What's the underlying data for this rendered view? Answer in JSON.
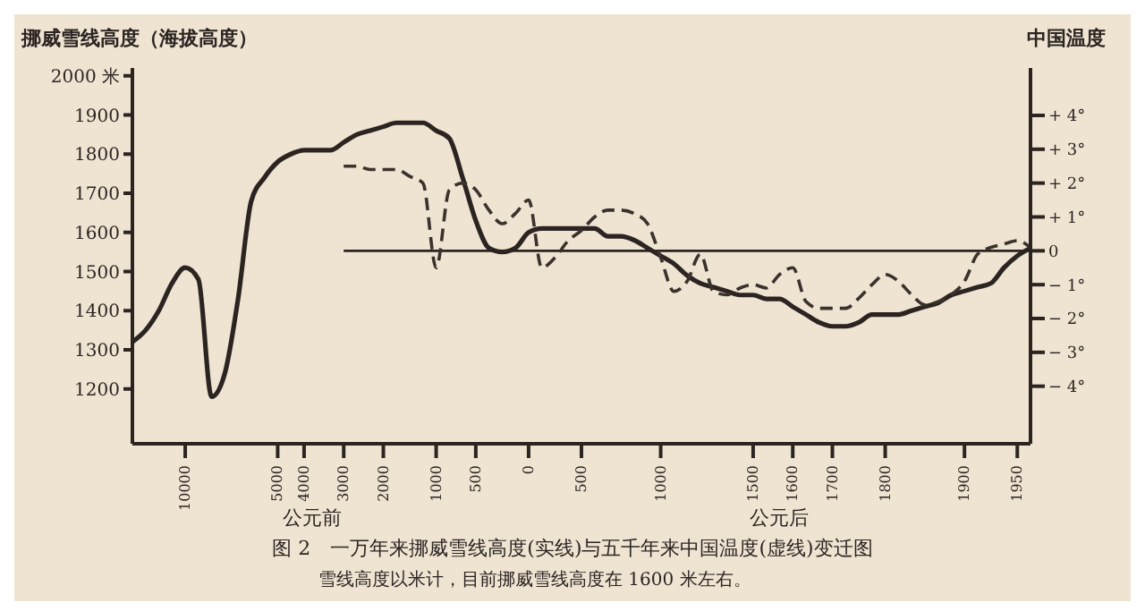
{
  "chart_data": {
    "type": "line",
    "title": "图 2　一万年来挪威雪线高度(实线)与五千年来中国温度(虚线)变迁图",
    "subtitle": "雪线高度以米计，目前挪威雪线高度在 1600 米左右。",
    "ylabel": "挪威雪线高度（海拔高度）",
    "y2label": "中国温度",
    "xlabel": "公元前",
    "annotations": [
      "公元后"
    ],
    "categories": [
      null,
      null,
      null,
      null,
      "10000",
      null,
      null,
      null,
      null,
      null,
      null,
      "5000",
      null,
      "4000",
      null,
      null,
      "3000",
      null,
      null,
      "2000",
      null,
      null,
      null,
      "1000",
      null,
      null,
      "500",
      null,
      null,
      null,
      "0",
      null,
      null,
      null,
      "500",
      null,
      null,
      null,
      null,
      null,
      "1000",
      null,
      null,
      null,
      null,
      null,
      null,
      "1500",
      null,
      null,
      "1600",
      null,
      null,
      "1700",
      null,
      null,
      null,
      "1800",
      null,
      null,
      null,
      null,
      null,
      "1900",
      null,
      null,
      null,
      "1950",
      null
    ],
    "series": [
      {
        "line_style": "solid",
        "color": "#2b2421",
        "values": [
          1320,
          1350,
          1400,
          1470,
          1510,
          1480,
          1180,
          1240,
          1430,
          1680,
          1740,
          1780,
          1800,
          1810,
          1810,
          1810,
          1830,
          1850,
          1860,
          1870,
          1880,
          1880,
          1880,
          1860,
          1840,
          1740,
          1630,
          1560,
          1550,
          1560,
          1600,
          1610,
          1610,
          1610,
          1610,
          1610,
          1590,
          1590,
          1580,
          1560,
          1540,
          1520,
          1490,
          1470,
          1460,
          1450,
          1440,
          1440,
          1430,
          1430,
          1410,
          1390,
          1370,
          1360,
          1360,
          1370,
          1390,
          1390,
          1390,
          1400,
          1410,
          1420,
          1440,
          1450,
          1460,
          1470,
          1510,
          1540,
          1560
        ]
      },
      {
        "line_style": "dashed",
        "axis": "y2",
        "color": "#3a322c",
        "values": [
          null,
          null,
          null,
          null,
          null,
          null,
          null,
          null,
          null,
          null,
          null,
          null,
          null,
          null,
          null,
          null,
          2.5,
          2.5,
          2.4,
          2.4,
          2.4,
          2.2,
          2.0,
          -0.5,
          1.8,
          2.0,
          1.8,
          1.2,
          0.8,
          1.1,
          1.5,
          -0.5,
          -0.2,
          0.3,
          0.6,
          1.0,
          1.2,
          1.2,
          1.1,
          0.8,
          -0.2,
          -1.2,
          -0.9,
          -0.1,
          -1.2,
          -1.3,
          -1.1,
          -1.0,
          -1.1,
          -0.7,
          -0.5,
          -1.5,
          -1.7,
          -1.7,
          -1.7,
          -1.4,
          -1.0,
          -0.7,
          -0.9,
          -1.3,
          -1.6,
          -1.5,
          -1.3,
          -0.9,
          -0.1,
          0.1,
          0.2,
          0.3,
          0.1
        ]
      }
    ],
    "ylim": [
      1060,
      2020
    ],
    "yticks": [
      1200,
      1300,
      1400,
      1500,
      1600,
      1700,
      1800,
      1900,
      {
        "value": 2000,
        "label": "2000 米"
      }
    ],
    "y2lim": [
      -5.7,
      5.4
    ],
    "y2ticks": [
      {
        "value": -4,
        "label": "− 4°"
      },
      {
        "value": -3,
        "label": "− 3°"
      },
      {
        "value": -2,
        "label": "− 2°"
      },
      {
        "value": -1,
        "label": "− 1°"
      },
      0,
      {
        "value": 1,
        "label": "+ 1°"
      },
      {
        "value": 2,
        "label": "+ 2°"
      },
      {
        "value": 3,
        "label": "+ 3°"
      },
      {
        "value": 4,
        "label": "+ 4°"
      }
    ],
    "ref_lines": [
      {
        "axis": "y2",
        "value": 0,
        "color": "#2b2421"
      }
    ],
    "grid": false,
    "legend": false,
    "marker": "none"
  }
}
